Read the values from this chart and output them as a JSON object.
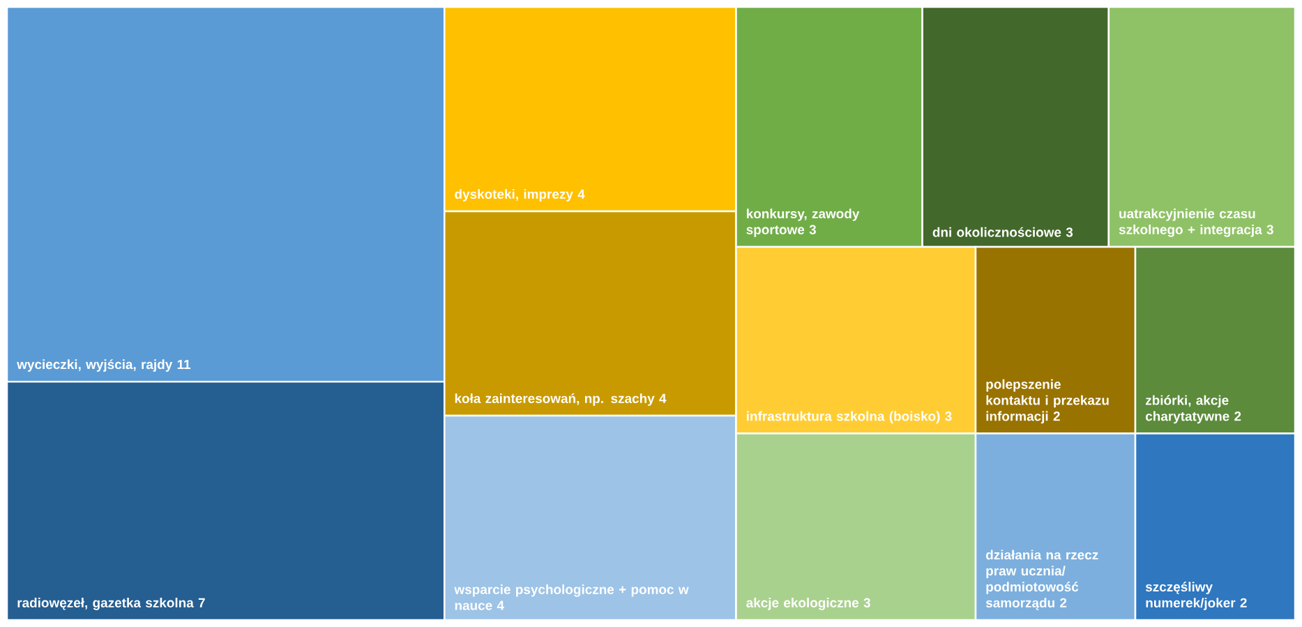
{
  "chart_data": {
    "type": "other",
    "categories": [
      "wycieczki, wyjścia, rajdy",
      "radiowęzeł, gazetka szkolna",
      "dyskoteki, imprezy",
      "koła zainteresowań, np. szachy",
      "wsparcie psychologiczne + pomoc w nauce",
      "konkursy, zawody sportowe",
      "dni okolicznościowe",
      "uatrakcyjnienie czasu szkolnego + integracja",
      "infrastruktura szkolna (boisko)",
      "akcje ekologiczne",
      "polepszenie kontaktu i przekazu informacji",
      "zbiórki, akcje charytatywne",
      "działania na rzecz praw ucznia/ podmiotowość samorządu",
      "szczęśliwy numerek/joker"
    ],
    "values": [
      11,
      7,
      4,
      4,
      4,
      3,
      3,
      3,
      3,
      3,
      2,
      2,
      2,
      2
    ],
    "colors": [
      "#5b9bd5",
      "#255e91",
      "#ffc000",
      "#c99a00",
      "#9dc3e6",
      "#70ad47",
      "#43682b",
      "#8fc266",
      "#ffcd33",
      "#a9d18e",
      "#997300",
      "#5b8b3b",
      "#7cafdd",
      "#2f77bf"
    ],
    "data_labels": true
  }
}
